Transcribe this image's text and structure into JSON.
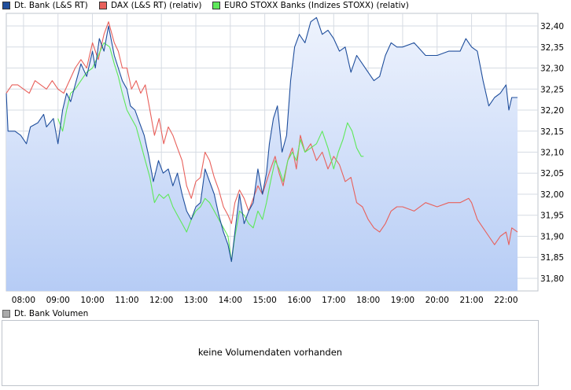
{
  "legend": {
    "items": [
      {
        "label": "Dt. Bank (L&S RT)",
        "color": "#1f4e9c"
      },
      {
        "label": "DAX (L&S RT) (relativ)",
        "color": "#e8605b"
      },
      {
        "label": "EURO STOXX Banks (Indizes STOXX) (relativ)",
        "color": "#5ee85a"
      }
    ]
  },
  "volume": {
    "legend_label": "Dt. Bank Volumen",
    "legend_color": "#aaaaaa",
    "message": "keine Volumendaten vorhanden"
  },
  "chart_data": {
    "type": "line",
    "x_ticks": [
      "08:00",
      "09:00",
      "10:00",
      "11:00",
      "12:00",
      "13:00",
      "14:00",
      "15:00",
      "16:00",
      "17:00",
      "18:00",
      "19:00",
      "20:00",
      "21:00",
      "22:00"
    ],
    "y_ticks": [
      "31,80",
      "31,85",
      "31,90",
      "31,95",
      "32,00",
      "32,05",
      "32,10",
      "32,15",
      "32,20",
      "32,25",
      "32,30",
      "32,35",
      "32,40"
    ],
    "xlim": [
      "07:30",
      "22:20"
    ],
    "ylim": [
      31.77,
      32.43
    ],
    "grid": true,
    "series": [
      {
        "name": "Dt. Bank (L&S RT)",
        "color": "#1f4e9c",
        "area": true,
        "points": [
          [
            "07:30",
            32.24
          ],
          [
            "07:33",
            32.15
          ],
          [
            "07:45",
            32.15
          ],
          [
            "07:55",
            32.14
          ],
          [
            "08:05",
            32.12
          ],
          [
            "08:12",
            32.16
          ],
          [
            "08:25",
            32.17
          ],
          [
            "08:35",
            32.19
          ],
          [
            "08:40",
            32.16
          ],
          [
            "08:52",
            32.18
          ],
          [
            "09:00",
            32.12
          ],
          [
            "09:08",
            32.2
          ],
          [
            "09:15",
            32.24
          ],
          [
            "09:22",
            32.22
          ],
          [
            "09:30",
            32.26
          ],
          [
            "09:40",
            32.31
          ],
          [
            "09:50",
            32.28
          ],
          [
            "10:00",
            32.34
          ],
          [
            "10:05",
            32.3
          ],
          [
            "10:12",
            32.37
          ],
          [
            "10:20",
            32.34
          ],
          [
            "10:28",
            32.4
          ],
          [
            "10:38",
            32.33
          ],
          [
            "10:45",
            32.3
          ],
          [
            "10:52",
            32.27
          ],
          [
            "11:00",
            32.25
          ],
          [
            "11:06",
            32.21
          ],
          [
            "11:14",
            32.2
          ],
          [
            "11:22",
            32.17
          ],
          [
            "11:30",
            32.14
          ],
          [
            "11:38",
            32.09
          ],
          [
            "11:46",
            32.03
          ],
          [
            "11:55",
            32.08
          ],
          [
            "12:03",
            32.05
          ],
          [
            "12:12",
            32.06
          ],
          [
            "12:20",
            32.02
          ],
          [
            "12:28",
            32.05
          ],
          [
            "12:36",
            32.0
          ],
          [
            "12:44",
            31.96
          ],
          [
            "12:52",
            31.94
          ],
          [
            "13:00",
            31.97
          ],
          [
            "13:08",
            31.98
          ],
          [
            "13:16",
            32.06
          ],
          [
            "13:24",
            32.03
          ],
          [
            "13:32",
            32.0
          ],
          [
            "13:40",
            31.95
          ],
          [
            "13:48",
            31.91
          ],
          [
            "13:56",
            31.88
          ],
          [
            "14:02",
            31.84
          ],
          [
            "14:08",
            31.91
          ],
          [
            "14:16",
            32.0
          ],
          [
            "14:24",
            31.93
          ],
          [
            "14:32",
            31.96
          ],
          [
            "14:40",
            31.98
          ],
          [
            "14:48",
            32.06
          ],
          [
            "14:56",
            32.0
          ],
          [
            "15:03",
            32.05
          ],
          [
            "15:08",
            32.12
          ],
          [
            "15:15",
            32.18
          ],
          [
            "15:22",
            32.21
          ],
          [
            "15:30",
            32.1
          ],
          [
            "15:38",
            32.14
          ],
          [
            "15:45",
            32.27
          ],
          [
            "15:52",
            32.35
          ],
          [
            "16:00",
            32.38
          ],
          [
            "16:10",
            32.36
          ],
          [
            "16:20",
            32.41
          ],
          [
            "16:30",
            32.42
          ],
          [
            "16:40",
            32.38
          ],
          [
            "16:50",
            32.39
          ],
          [
            "17:00",
            32.37
          ],
          [
            "17:10",
            32.34
          ],
          [
            "17:20",
            32.35
          ],
          [
            "17:30",
            32.29
          ],
          [
            "17:40",
            32.33
          ],
          [
            "17:50",
            32.31
          ],
          [
            "18:00",
            32.29
          ],
          [
            "18:10",
            32.27
          ],
          [
            "18:20",
            32.28
          ],
          [
            "18:30",
            32.33
          ],
          [
            "18:40",
            32.36
          ],
          [
            "18:50",
            32.35
          ],
          [
            "19:00",
            32.35
          ],
          [
            "19:20",
            32.36
          ],
          [
            "19:40",
            32.33
          ],
          [
            "20:00",
            32.33
          ],
          [
            "20:20",
            32.34
          ],
          [
            "20:40",
            32.34
          ],
          [
            "20:50",
            32.37
          ],
          [
            "21:00",
            32.35
          ],
          [
            "21:10",
            32.34
          ],
          [
            "21:20",
            32.27
          ],
          [
            "21:30",
            32.21
          ],
          [
            "21:40",
            32.23
          ],
          [
            "21:50",
            32.24
          ],
          [
            "22:00",
            32.26
          ],
          [
            "22:05",
            32.2
          ],
          [
            "22:10",
            32.23
          ],
          [
            "22:20",
            32.23
          ]
        ]
      },
      {
        "name": "DAX (L&S RT) (relativ)",
        "color": "#e8605b",
        "area": false,
        "points": [
          [
            "07:30",
            32.24
          ],
          [
            "07:40",
            32.26
          ],
          [
            "07:50",
            32.26
          ],
          [
            "08:00",
            32.25
          ],
          [
            "08:10",
            32.24
          ],
          [
            "08:20",
            32.27
          ],
          [
            "08:30",
            32.26
          ],
          [
            "08:40",
            32.25
          ],
          [
            "08:50",
            32.27
          ],
          [
            "09:00",
            32.25
          ],
          [
            "09:10",
            32.24
          ],
          [
            "09:20",
            32.27
          ],
          [
            "09:30",
            32.3
          ],
          [
            "09:40",
            32.32
          ],
          [
            "09:50",
            32.3
          ],
          [
            "10:00",
            32.36
          ],
          [
            "10:10",
            32.32
          ],
          [
            "10:20",
            32.38
          ],
          [
            "10:28",
            32.41
          ],
          [
            "10:38",
            32.36
          ],
          [
            "10:45",
            32.34
          ],
          [
            "10:52",
            32.3
          ],
          [
            "11:00",
            32.3
          ],
          [
            "11:08",
            32.25
          ],
          [
            "11:16",
            32.27
          ],
          [
            "11:24",
            32.24
          ],
          [
            "11:32",
            32.26
          ],
          [
            "11:40",
            32.2
          ],
          [
            "11:48",
            32.14
          ],
          [
            "11:56",
            32.18
          ],
          [
            "12:04",
            32.12
          ],
          [
            "12:12",
            32.16
          ],
          [
            "12:20",
            32.14
          ],
          [
            "12:28",
            32.11
          ],
          [
            "12:36",
            32.08
          ],
          [
            "12:44",
            32.02
          ],
          [
            "12:52",
            31.99
          ],
          [
            "13:00",
            32.03
          ],
          [
            "13:08",
            32.04
          ],
          [
            "13:16",
            32.1
          ],
          [
            "13:24",
            32.08
          ],
          [
            "13:32",
            32.04
          ],
          [
            "13:40",
            32.01
          ],
          [
            "13:48",
            31.97
          ],
          [
            "13:56",
            31.95
          ],
          [
            "14:02",
            31.93
          ],
          [
            "14:08",
            31.98
          ],
          [
            "14:16",
            32.01
          ],
          [
            "14:24",
            31.99
          ],
          [
            "14:32",
            31.96
          ],
          [
            "14:40",
            31.99
          ],
          [
            "14:48",
            32.02
          ],
          [
            "14:56",
            32.0
          ],
          [
            "15:03",
            32.03
          ],
          [
            "15:10",
            32.06
          ],
          [
            "15:18",
            32.09
          ],
          [
            "15:25",
            32.05
          ],
          [
            "15:32",
            32.02
          ],
          [
            "15:40",
            32.08
          ],
          [
            "15:48",
            32.11
          ],
          [
            "15:55",
            32.06
          ],
          [
            "16:02",
            32.14
          ],
          [
            "16:10",
            32.1
          ],
          [
            "16:20",
            32.12
          ],
          [
            "16:30",
            32.08
          ],
          [
            "16:40",
            32.1
          ],
          [
            "16:50",
            32.06
          ],
          [
            "17:00",
            32.09
          ],
          [
            "17:10",
            32.07
          ],
          [
            "17:20",
            32.03
          ],
          [
            "17:30",
            32.04
          ],
          [
            "17:40",
            31.98
          ],
          [
            "17:50",
            31.97
          ],
          [
            "18:00",
            31.94
          ],
          [
            "18:10",
            31.92
          ],
          [
            "18:20",
            31.91
          ],
          [
            "18:30",
            31.93
          ],
          [
            "18:40",
            31.96
          ],
          [
            "18:50",
            31.97
          ],
          [
            "19:00",
            31.97
          ],
          [
            "19:20",
            31.96
          ],
          [
            "19:40",
            31.98
          ],
          [
            "20:00",
            31.97
          ],
          [
            "20:20",
            31.98
          ],
          [
            "20:40",
            31.98
          ],
          [
            "20:55",
            31.99
          ],
          [
            "21:00",
            31.98
          ],
          [
            "21:10",
            31.94
          ],
          [
            "21:20",
            31.92
          ],
          [
            "21:30",
            31.9
          ],
          [
            "21:40",
            31.88
          ],
          [
            "21:50",
            31.9
          ],
          [
            "22:00",
            31.91
          ],
          [
            "22:05",
            31.88
          ],
          [
            "22:10",
            31.92
          ],
          [
            "22:20",
            31.91
          ]
        ]
      },
      {
        "name": "EURO STOXX Banks (Indizes STOXX) (relativ)",
        "color": "#5ee85a",
        "area": false,
        "points": [
          [
            "09:00",
            32.18
          ],
          [
            "09:08",
            32.15
          ],
          [
            "09:15",
            32.2
          ],
          [
            "09:22",
            32.24
          ],
          [
            "09:30",
            32.25
          ],
          [
            "09:40",
            32.27
          ],
          [
            "09:50",
            32.29
          ],
          [
            "10:00",
            32.3
          ],
          [
            "10:10",
            32.33
          ],
          [
            "10:20",
            32.36
          ],
          [
            "10:30",
            32.35
          ],
          [
            "10:38",
            32.31
          ],
          [
            "10:45",
            32.28
          ],
          [
            "10:52",
            32.24
          ],
          [
            "11:00",
            32.2
          ],
          [
            "11:08",
            32.18
          ],
          [
            "11:16",
            32.16
          ],
          [
            "11:24",
            32.12
          ],
          [
            "11:32",
            32.08
          ],
          [
            "11:40",
            32.04
          ],
          [
            "11:48",
            31.98
          ],
          [
            "11:56",
            32.0
          ],
          [
            "12:04",
            31.99
          ],
          [
            "12:12",
            32.0
          ],
          [
            "12:20",
            31.97
          ],
          [
            "12:28",
            31.95
          ],
          [
            "12:36",
            31.93
          ],
          [
            "12:44",
            31.91
          ],
          [
            "12:52",
            31.94
          ],
          [
            "13:00",
            31.96
          ],
          [
            "13:08",
            31.97
          ],
          [
            "13:16",
            31.99
          ],
          [
            "13:24",
            31.98
          ],
          [
            "13:32",
            31.96
          ],
          [
            "13:40",
            31.94
          ],
          [
            "13:48",
            31.92
          ],
          [
            "13:56",
            31.9
          ],
          [
            "14:02",
            31.84
          ],
          [
            "14:08",
            31.9
          ],
          [
            "14:16",
            31.96
          ],
          [
            "14:24",
            31.95
          ],
          [
            "14:32",
            31.93
          ],
          [
            "14:40",
            31.92
          ],
          [
            "14:48",
            31.96
          ],
          [
            "14:56",
            31.94
          ],
          [
            "15:03",
            31.98
          ],
          [
            "15:10",
            32.03
          ],
          [
            "15:18",
            32.08
          ],
          [
            "15:25",
            32.06
          ],
          [
            "15:32",
            32.03
          ],
          [
            "15:40",
            32.08
          ],
          [
            "15:48",
            32.1
          ],
          [
            "15:55",
            32.08
          ],
          [
            "16:02",
            32.13
          ],
          [
            "16:10",
            32.1
          ],
          [
            "16:20",
            32.11
          ],
          [
            "16:30",
            32.12
          ],
          [
            "16:40",
            32.15
          ],
          [
            "16:50",
            32.11
          ],
          [
            "17:00",
            32.06
          ],
          [
            "17:08",
            32.1
          ],
          [
            "17:16",
            32.13
          ],
          [
            "17:24",
            32.17
          ],
          [
            "17:32",
            32.15
          ],
          [
            "17:40",
            32.11
          ],
          [
            "17:48",
            32.09
          ],
          [
            "17:52",
            32.09
          ]
        ]
      }
    ]
  }
}
